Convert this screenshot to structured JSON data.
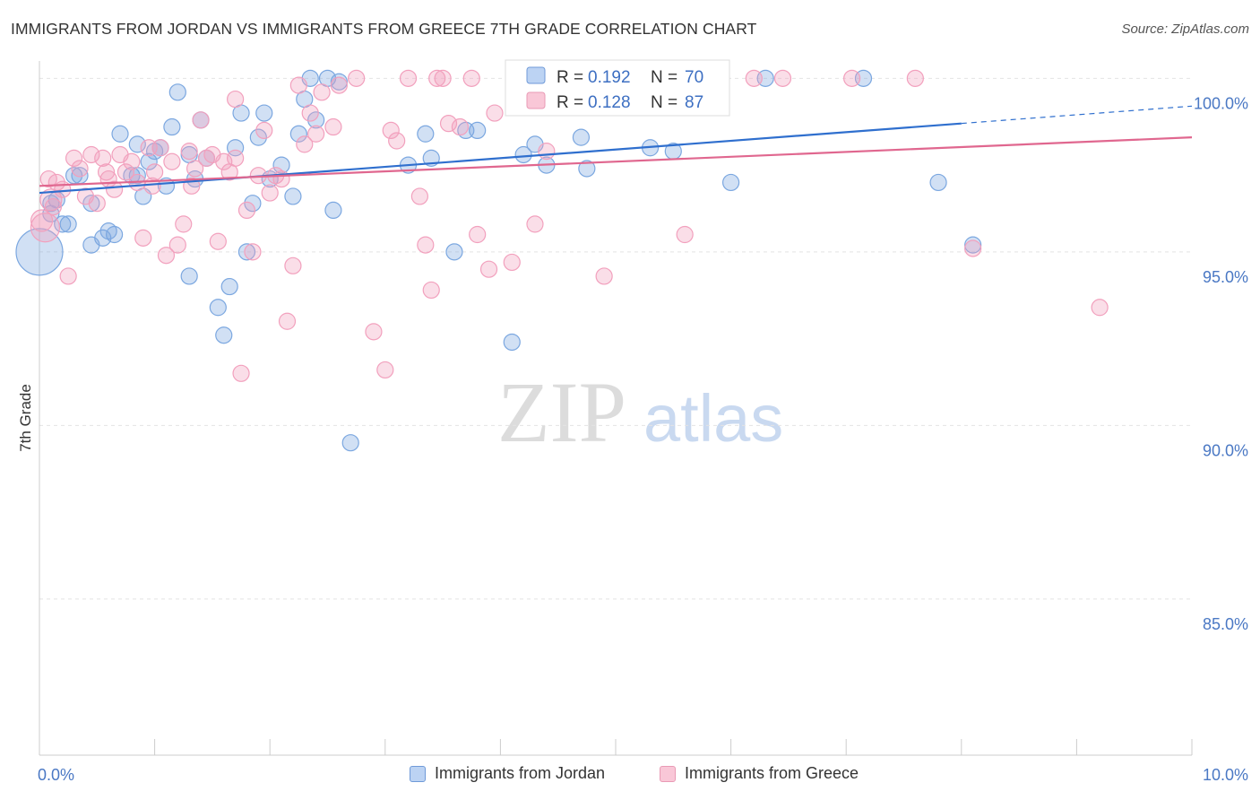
{
  "title": "IMMIGRANTS FROM JORDAN VS IMMIGRANTS FROM GREECE 7TH GRADE CORRELATION CHART",
  "source": "Source: ZipAtlas.com",
  "watermark": {
    "zip": "ZIP",
    "atlas": "atlas"
  },
  "chart_data": {
    "type": "scatter",
    "title": "IMMIGRANTS FROM JORDAN VS IMMIGRANTS FROM GREECE 7TH GRADE CORRELATION CHART",
    "xlabel": "",
    "ylabel": "7th Grade",
    "xlim": [
      0,
      10
    ],
    "ylim": [
      80.5,
      100.5
    ],
    "x_tick_labels": [
      "0.0%",
      "10.0%"
    ],
    "y_ticks": [
      85,
      90,
      95,
      100
    ],
    "y_tick_labels": [
      "85.0%",
      "90.0%",
      "95.0%",
      "100.0%"
    ],
    "grid": true,
    "legend_position": "top-center",
    "stats": [
      {
        "r_label": "R =",
        "r_value": "0.192",
        "n_label": "N =",
        "n_value": "70"
      },
      {
        "r_label": "R =",
        "r_value": "0.128",
        "n_label": "N =",
        "n_value": "87"
      }
    ],
    "series": [
      {
        "name": "Immigrants from Jordan",
        "color": "#7ba7e0",
        "line_color": "#2f6fce",
        "trend": {
          "x0": 0,
          "y0": 96.7,
          "x1": 8.0,
          "y1": 98.7,
          "dash_to_x": 10,
          "dash_y": 99.2
        },
        "points": [
          [
            0.0,
            95.0,
            26
          ],
          [
            0.1,
            96.1,
            9
          ],
          [
            0.1,
            96.4,
            9
          ],
          [
            0.2,
            95.8,
            9
          ],
          [
            0.25,
            95.8,
            9
          ],
          [
            0.3,
            97.2,
            9
          ],
          [
            0.35,
            97.2,
            9
          ],
          [
            0.45,
            96.4,
            9
          ],
          [
            0.45,
            95.2,
            9
          ],
          [
            0.55,
            95.4,
            9
          ],
          [
            0.6,
            95.6,
            9
          ],
          [
            0.65,
            95.5,
            9
          ],
          [
            0.7,
            98.4,
            9
          ],
          [
            0.8,
            97.2,
            9
          ],
          [
            0.85,
            98.1,
            9
          ],
          [
            0.85,
            97.2,
            9
          ],
          [
            0.9,
            96.6,
            9
          ],
          [
            0.95,
            97.6,
            9
          ],
          [
            1.0,
            97.9,
            9
          ],
          [
            1.05,
            98.0,
            9
          ],
          [
            1.1,
            96.9,
            9
          ],
          [
            1.15,
            98.6,
            9
          ],
          [
            1.2,
            99.6,
            9
          ],
          [
            1.3,
            97.8,
            9
          ],
          [
            1.3,
            94.3,
            9
          ],
          [
            1.35,
            97.1,
            9
          ],
          [
            1.4,
            98.8,
            9
          ],
          [
            1.45,
            97.7,
            9
          ],
          [
            1.55,
            93.4,
            9
          ],
          [
            1.6,
            92.6,
            9
          ],
          [
            1.65,
            94.0,
            9
          ],
          [
            1.7,
            98.0,
            9
          ],
          [
            1.75,
            99.0,
            9
          ],
          [
            1.8,
            95.0,
            9
          ],
          [
            1.85,
            96.4,
            9
          ],
          [
            1.9,
            98.3,
            9
          ],
          [
            1.95,
            99.0,
            9
          ],
          [
            2.0,
            97.1,
            9
          ],
          [
            2.1,
            97.5,
            9
          ],
          [
            2.2,
            96.6,
            9
          ],
          [
            2.25,
            98.4,
            9
          ],
          [
            2.3,
            99.4,
            9
          ],
          [
            2.35,
            100.0,
            9
          ],
          [
            2.4,
            98.8,
            9
          ],
          [
            2.5,
            100.0,
            9
          ],
          [
            2.55,
            96.2,
            9
          ],
          [
            2.6,
            99.9,
            9
          ],
          [
            2.7,
            89.5,
            9
          ],
          [
            3.2,
            97.5,
            9
          ],
          [
            3.35,
            98.4,
            9
          ],
          [
            3.4,
            97.7,
            9
          ],
          [
            3.6,
            95.0,
            9
          ],
          [
            3.7,
            98.5,
            9
          ],
          [
            3.8,
            98.5,
            9
          ],
          [
            4.1,
            92.4,
            9
          ],
          [
            4.2,
            97.8,
            9
          ],
          [
            4.3,
            98.1,
            9
          ],
          [
            4.4,
            97.5,
            9
          ],
          [
            4.5,
            100.0,
            9
          ],
          [
            4.7,
            98.3,
            9
          ],
          [
            4.75,
            97.4,
            9
          ],
          [
            5.0,
            100.0,
            9
          ],
          [
            5.3,
            98.0,
            9
          ],
          [
            5.5,
            97.9,
            9
          ],
          [
            6.0,
            97.0,
            9
          ],
          [
            6.3,
            100.0,
            9
          ],
          [
            7.15,
            100.0,
            9
          ],
          [
            7.8,
            97.0,
            9
          ],
          [
            8.1,
            95.2,
            9
          ],
          [
            0.15,
            96.5,
            9
          ]
        ]
      },
      {
        "name": "Immigrants from Greece",
        "color": "#f2a0bd",
        "line_color": "#e0678f",
        "trend": {
          "x0": 0,
          "y0": 96.9,
          "x1": 10,
          "y1": 98.3
        },
        "points": [
          [
            0.05,
            95.7,
            16
          ],
          [
            0.1,
            96.5,
            12
          ],
          [
            0.15,
            97.0,
            9
          ],
          [
            0.2,
            96.8,
            9
          ],
          [
            0.25,
            94.3,
            9
          ],
          [
            0.3,
            97.7,
            9
          ],
          [
            0.35,
            97.4,
            9
          ],
          [
            0.4,
            96.6,
            9
          ],
          [
            0.45,
            97.8,
            9
          ],
          [
            0.5,
            96.4,
            9
          ],
          [
            0.55,
            97.7,
            9
          ],
          [
            0.6,
            97.1,
            9
          ],
          [
            0.65,
            96.8,
            9
          ],
          [
            0.7,
            97.8,
            9
          ],
          [
            0.75,
            97.3,
            9
          ],
          [
            0.8,
            97.6,
            9
          ],
          [
            0.85,
            97.0,
            9
          ],
          [
            0.9,
            95.4,
            9
          ],
          [
            0.95,
            98.0,
            9
          ],
          [
            1.0,
            97.3,
            9
          ],
          [
            1.05,
            98.0,
            9
          ],
          [
            1.1,
            94.9,
            9
          ],
          [
            1.15,
            97.6,
            9
          ],
          [
            1.2,
            95.2,
            9
          ],
          [
            1.25,
            95.8,
            9
          ],
          [
            1.3,
            97.9,
            9
          ],
          [
            1.35,
            97.4,
            9
          ],
          [
            1.4,
            98.8,
            9
          ],
          [
            1.45,
            97.7,
            9
          ],
          [
            1.5,
            97.8,
            9
          ],
          [
            1.55,
            95.3,
            9
          ],
          [
            1.6,
            97.6,
            9
          ],
          [
            1.65,
            97.3,
            9
          ],
          [
            1.7,
            99.4,
            9
          ],
          [
            1.75,
            91.5,
            9
          ],
          [
            1.8,
            96.2,
            9
          ],
          [
            1.85,
            95.0,
            9
          ],
          [
            1.9,
            97.2,
            9
          ],
          [
            1.95,
            98.5,
            9
          ],
          [
            2.0,
            96.7,
            9
          ],
          [
            2.05,
            97.2,
            9
          ],
          [
            2.1,
            97.1,
            9
          ],
          [
            2.15,
            93.0,
            9
          ],
          [
            2.2,
            94.6,
            9
          ],
          [
            2.25,
            99.8,
            9
          ],
          [
            2.3,
            98.1,
            9
          ],
          [
            2.35,
            99.0,
            9
          ],
          [
            2.4,
            98.4,
            9
          ],
          [
            2.45,
            99.6,
            9
          ],
          [
            2.6,
            99.8,
            9
          ],
          [
            2.75,
            100.0,
            9
          ],
          [
            2.9,
            92.7,
            9
          ],
          [
            3.0,
            91.6,
            9
          ],
          [
            3.05,
            98.5,
            9
          ],
          [
            3.1,
            98.2,
            9
          ],
          [
            3.2,
            100.0,
            9
          ],
          [
            3.3,
            96.6,
            9
          ],
          [
            3.35,
            95.2,
            9
          ],
          [
            3.4,
            93.9,
            9
          ],
          [
            3.45,
            100.0,
            9
          ],
          [
            3.5,
            100.0,
            9
          ],
          [
            3.55,
            98.7,
            9
          ],
          [
            3.65,
            98.6,
            9
          ],
          [
            3.75,
            100.0,
            9
          ],
          [
            3.8,
            95.5,
            9
          ],
          [
            3.9,
            94.5,
            9
          ],
          [
            3.95,
            99.0,
            9
          ],
          [
            4.1,
            94.7,
            9
          ],
          [
            4.3,
            95.8,
            9
          ],
          [
            4.4,
            97.9,
            9
          ],
          [
            4.65,
            100.0,
            9
          ],
          [
            4.9,
            94.3,
            9
          ],
          [
            5.6,
            95.5,
            9
          ],
          [
            6.2,
            100.0,
            9
          ],
          [
            6.45,
            100.0,
            9
          ],
          [
            7.05,
            100.0,
            9
          ],
          [
            7.6,
            100.0,
            9
          ],
          [
            8.1,
            95.1,
            9
          ],
          [
            9.2,
            93.4,
            9
          ],
          [
            0.02,
            95.9,
            12
          ],
          [
            0.08,
            97.1,
            9
          ],
          [
            0.12,
            96.3,
            9
          ],
          [
            2.55,
            98.6,
            9
          ],
          [
            1.32,
            96.9,
            9
          ],
          [
            0.58,
            97.3,
            9
          ],
          [
            0.98,
            96.9,
            9
          ],
          [
            1.7,
            97.7,
            9
          ]
        ]
      }
    ]
  },
  "bottom_legend": [
    {
      "label": "Immigrants from Jordan",
      "fill": "#bcd3f3",
      "stroke": "#6f9ad8"
    },
    {
      "label": "Immigrants from Greece",
      "fill": "#f9c7d7",
      "stroke": "#e99ab5"
    }
  ]
}
